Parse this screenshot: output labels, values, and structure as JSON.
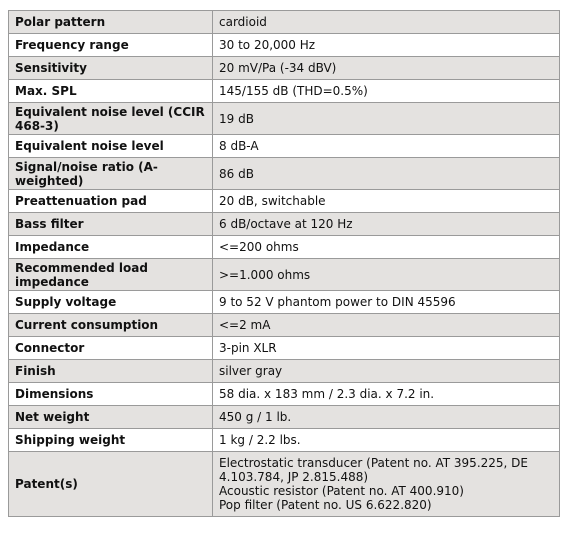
{
  "specs": [
    {
      "label": "Polar pattern",
      "value": [
        "cardioid"
      ],
      "shade": "odd",
      "h": "h1"
    },
    {
      "label": "Frequency range",
      "value": [
        "30 to 20,000 Hz"
      ],
      "shade": "even",
      "h": "h1"
    },
    {
      "label": "Sensitivity",
      "value": [
        "20 mV/Pa (-34 dBV)"
      ],
      "shade": "odd",
      "h": "h1"
    },
    {
      "label": "Max. SPL",
      "value": [
        "145/155 dB (THD=0.5%)"
      ],
      "shade": "even",
      "h": "h1"
    },
    {
      "label": "Equivalent noise level (CCIR 468-3)",
      "value": [
        "19 dB"
      ],
      "shade": "odd",
      "h": "h2"
    },
    {
      "label": "Equivalent noise level",
      "value": [
        "8 dB-A"
      ],
      "shade": "even",
      "h": "h1"
    },
    {
      "label": "Signal/noise ratio (A-weighted)",
      "value": [
        "86 dB"
      ],
      "shade": "odd",
      "h": "h2"
    },
    {
      "label": "Preattenuation pad",
      "value": [
        "20 dB, switchable"
      ],
      "shade": "even",
      "h": "h1"
    },
    {
      "label": "Bass filter",
      "value": [
        "6 dB/octave at 120 Hz"
      ],
      "shade": "odd",
      "h": "h1"
    },
    {
      "label": "Impedance",
      "value": [
        "<=200 ohms"
      ],
      "shade": "even",
      "h": "h1"
    },
    {
      "label": "Recommended load impedance",
      "value": [
        ">=1.000 ohms"
      ],
      "shade": "odd",
      "h": "h2"
    },
    {
      "label": "Supply voltage",
      "value": [
        "9 to 52 V phantom power to DIN 45596"
      ],
      "shade": "even",
      "h": "h1"
    },
    {
      "label": "Current consumption",
      "value": [
        "<=2 mA"
      ],
      "shade": "odd",
      "h": "h1"
    },
    {
      "label": "Connector",
      "value": [
        "3-pin XLR"
      ],
      "shade": "even",
      "h": "h1"
    },
    {
      "label": "Finish",
      "value": [
        "silver gray"
      ],
      "shade": "odd",
      "h": "h1"
    },
    {
      "label": "Dimensions",
      "value": [
        "58 dia. x 183 mm / 2.3 dia. x 7.2 in."
      ],
      "shade": "even",
      "h": "h1"
    },
    {
      "label": "Net weight",
      "value": [
        "450 g / 1 lb."
      ],
      "shade": "odd",
      "h": "h1"
    },
    {
      "label": "Shipping weight",
      "value": [
        "1 kg / 2.2 lbs."
      ],
      "shade": "even",
      "h": "h1"
    },
    {
      "label": "Patent(s)",
      "value": [
        "Electrostatic transducer (Patent no. AT 395.225, DE 4.103.784, JP 2.815.488)",
        "Acoustic resistor (Patent no. AT 400.910)",
        "Pop filter (Patent no. US 6.622.820)"
      ],
      "shade": "odd",
      "h": "h4"
    }
  ]
}
